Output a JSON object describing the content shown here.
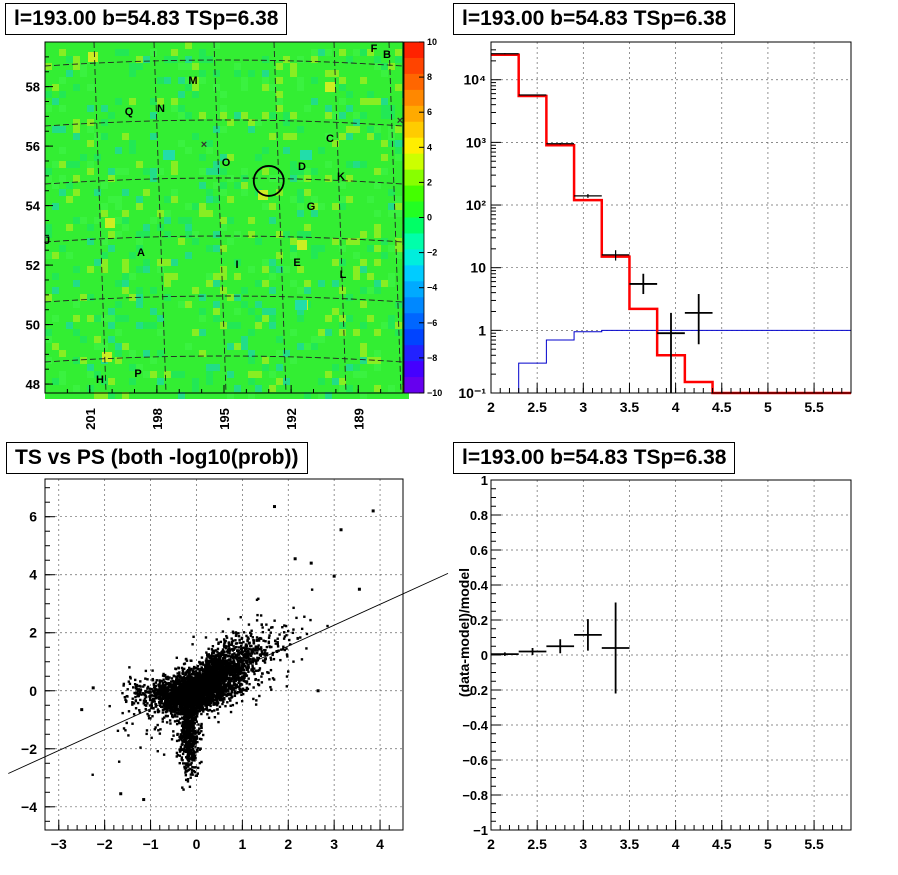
{
  "pads": {
    "skymap": {
      "title": "l=193.00 b=54.83 TSp=6.38",
      "x_ticks": [
        "201",
        "198",
        "195",
        "192",
        "189"
      ],
      "y_ticks": [
        "58",
        "56",
        "54",
        "52",
        "50",
        "48"
      ],
      "colorbar_ticks": [
        "10",
        "8",
        "6",
        "4",
        "2",
        "0",
        "−2",
        "−4",
        "−6",
        "−8",
        "−10"
      ],
      "source_labels": [
        "F",
        "B",
        "M",
        "Q",
        "N",
        "C",
        "O",
        "D",
        "K",
        "G",
        "J",
        "A",
        "I",
        "E",
        "L",
        "H",
        "P"
      ]
    },
    "spectrum": {
      "title": "l=193.00 b=54.83 TSp=6.38",
      "x_ticks": [
        "2",
        "2.5",
        "3",
        "3.5",
        "4",
        "4.5",
        "5",
        "5.5"
      ],
      "y_ticks": [
        "10⁴",
        "10³",
        "10²",
        "10",
        "1",
        "10⁻¹"
      ]
    },
    "ts_vs_ps": {
      "title": "TS vs PS (both -log10(prob))",
      "x_ticks": [
        "−3",
        "−2",
        "−1",
        "0",
        "1",
        "2",
        "3",
        "4"
      ],
      "y_ticks": [
        "6",
        "4",
        "2",
        "0",
        "−2",
        "−4"
      ]
    },
    "residual": {
      "title": "l=193.00 b=54.83 TSp=6.38",
      "ylabel": "(data-model)/model",
      "x_ticks": [
        "2",
        "2.5",
        "3",
        "3.5",
        "4",
        "4.5",
        "5",
        "5.5"
      ],
      "y_ticks": [
        "1",
        "0.8",
        "0.6",
        "0.4",
        "0.2",
        "0",
        "−0.2",
        "−0.4",
        "−0.6",
        "−0.8",
        "−1"
      ]
    }
  },
  "chart_data": [
    {
      "type": "heatmap",
      "title": "l=193.00 b=54.83 TSp=6.38",
      "x_axis": {
        "reversed": true,
        "range": [
          203,
          187
        ],
        "ticks": [
          201,
          198,
          195,
          192,
          189
        ]
      },
      "y_axis": {
        "range": [
          47.7,
          59.5
        ],
        "ticks": [
          58,
          56,
          54,
          52,
          50,
          48
        ]
      },
      "z_range": [
        -10,
        10
      ],
      "colorbar": "right",
      "highlight_circle": {
        "l": 193.0,
        "b": 54.83
      },
      "grid": true
    },
    {
      "type": "line",
      "title": "l=193.00 b=54.83 TSp=6.38",
      "xlim": [
        2,
        5.9
      ],
      "y_log": true,
      "ylim": [
        0.1,
        40000
      ],
      "grid": true,
      "series": [
        {
          "role": "model_total",
          "color": "#ff0000",
          "bins": [
            [
              2.0,
              2.3
            ],
            [
              2.3,
              2.6
            ],
            [
              2.6,
              2.9
            ],
            [
              2.9,
              3.2
            ],
            [
              3.2,
              3.5
            ],
            [
              3.5,
              3.8
            ],
            [
              3.8,
              4.1
            ],
            [
              4.1,
              4.4
            ],
            [
              4.4,
              5.9
            ]
          ],
          "values": [
            25000,
            5500,
            900,
            120,
            15,
            2.2,
            0.4,
            0.15,
            0.1
          ]
        },
        {
          "role": "model_component",
          "color": "#0000cc",
          "bins": [
            [
              2.3,
              2.6
            ],
            [
              2.6,
              2.9
            ],
            [
              2.9,
              3.2
            ],
            [
              3.2,
              5.9
            ]
          ],
          "values": [
            0.3,
            0.7,
            0.95,
            1.0
          ]
        },
        {
          "role": "data",
          "color": "#000000",
          "x": [
            2.15,
            2.45,
            2.75,
            3.05,
            3.35,
            3.65,
            3.95,
            4.25
          ],
          "xerr": [
            0.15,
            0.15,
            0.15,
            0.15,
            0.15,
            0.15,
            0.15,
            0.15
          ],
          "y": [
            26000,
            5700,
            950,
            140,
            16,
            5.5,
            0.9,
            1.9
          ],
          "ylo": [
            25500,
            5600,
            920,
            130,
            13,
            3.8,
            0.1,
            0.6
          ],
          "yhi": [
            26500,
            5800,
            980,
            150,
            19,
            8.0,
            1.9,
            3.8
          ]
        }
      ]
    },
    {
      "type": "scatter",
      "title": "TS vs PS (both -log10(prob))",
      "xlim": [
        -3.3,
        4.5
      ],
      "ylim": [
        -4.8,
        7.3
      ],
      "grid": true,
      "n_points": 4500,
      "core": {
        "x_center": 0.0,
        "y_center": 0.0
      },
      "outliers": [
        [
          1.7,
          6.35
        ],
        [
          3.85,
          6.2
        ],
        [
          3.15,
          5.55
        ],
        [
          2.15,
          4.55
        ],
        [
          2.5,
          4.4
        ],
        [
          3.0,
          3.95
        ],
        [
          3.55,
          3.5
        ],
        [
          -2.5,
          -0.65
        ],
        [
          -1.65,
          -3.55
        ],
        [
          -1.15,
          -3.75
        ],
        [
          2.65,
          0.0
        ],
        [
          -2.25,
          0.1
        ]
      ],
      "fit_line": {
        "slope": 0.72,
        "intercept": 0.1
      }
    },
    {
      "type": "scatter",
      "title": "l=193.00 b=54.83 TSp=6.38",
      "ylabel": "(data-model)/model",
      "xlim": [
        2,
        5.9
      ],
      "ylim": [
        -1,
        1
      ],
      "grid": true,
      "points": [
        {
          "x": 2.15,
          "xerr": 0.15,
          "y": 0.005,
          "yerr": 0.01
        },
        {
          "x": 2.45,
          "xerr": 0.15,
          "y": 0.02,
          "yerr": 0.02
        },
        {
          "x": 2.75,
          "xerr": 0.15,
          "y": 0.05,
          "yerr": 0.04
        },
        {
          "x": 3.05,
          "xerr": 0.15,
          "y": 0.115,
          "yerr": 0.09
        },
        {
          "x": 3.35,
          "xerr": 0.15,
          "y": 0.04,
          "yerr": 0.26
        }
      ]
    }
  ]
}
